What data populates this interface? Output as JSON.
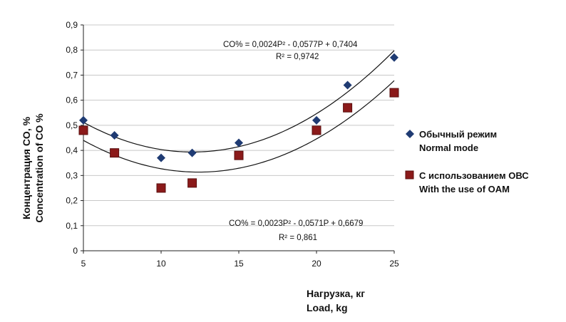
{
  "chart_data": {
    "type": "scatter",
    "xlim": [
      5,
      25
    ],
    "ylim": [
      0,
      0.9
    ],
    "x_ticks": [
      "5",
      "10",
      "15",
      "20",
      "25"
    ],
    "x_tick_values": [
      5,
      10,
      15,
      20,
      25
    ],
    "y_ticks": [
      "0",
      "0,1",
      "0,2",
      "0,3",
      "0,4",
      "0,5",
      "0,6",
      "0,7",
      "0,8",
      "0,9"
    ],
    "y_tick_values": [
      0,
      0.1,
      0.2,
      0.3,
      0.4,
      0.5,
      0.6,
      0.7,
      0.8,
      0.9
    ],
    "xlabel": [
      "Нагрузка, кг",
      "Load, kg"
    ],
    "ylabel": [
      "Концентрация CO, %",
      "Concentration of CO %"
    ],
    "grid": "horizontal",
    "legend_position": "right",
    "series": [
      {
        "name": "Обычный режим",
        "name_en": "Normal mode",
        "marker": "diamond",
        "color": "#1f3b73",
        "x": [
          5,
          7,
          10,
          12,
          15,
          20,
          22,
          25
        ],
        "y": [
          0.52,
          0.46,
          0.37,
          0.39,
          0.43,
          0.52,
          0.66,
          0.77
        ],
        "trendline": {
          "a": 0.0024,
          "b": -0.0577,
          "c": 0.7404
        },
        "equation": "CO% = 0,0024P² - 0,0577P + 0,7404",
        "r2": "R² = 0,9742"
      },
      {
        "name": "С использованием ОВС",
        "name_en": "With the use of OAM",
        "marker": "square",
        "color": "#8b1a1a",
        "x": [
          5,
          7,
          10,
          12,
          15,
          20,
          22,
          25
        ],
        "y": [
          0.48,
          0.39,
          0.25,
          0.27,
          0.38,
          0.48,
          0.57,
          0.63
        ],
        "trendline": {
          "a": 0.0023,
          "b": -0.0571,
          "c": 0.6679
        },
        "equation": "CO% = 0,0023P² - 0,0571P + 0,6679",
        "r2": "R² = 0,861"
      }
    ]
  }
}
